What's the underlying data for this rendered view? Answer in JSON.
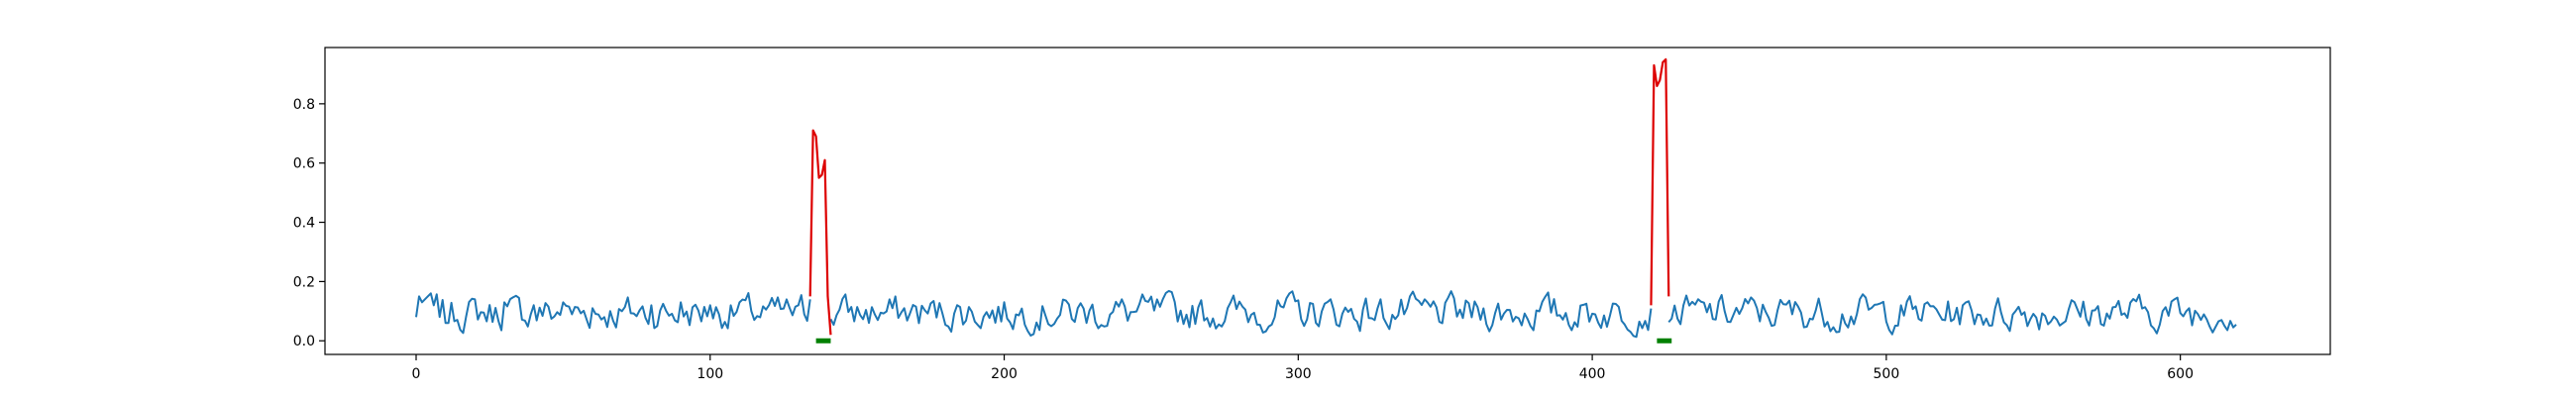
{
  "chart_data": {
    "type": "line",
    "title": "",
    "xlabel": "",
    "ylabel": "",
    "xlim": [
      -31,
      651
    ],
    "ylim": [
      -0.046,
      0.99
    ],
    "x_ticks": [
      0,
      100,
      200,
      300,
      400,
      500,
      600
    ],
    "x_tick_labels": [
      "0",
      "100",
      "200",
      "300",
      "400",
      "500",
      "600"
    ],
    "y_ticks": [
      0.0,
      0.2,
      0.4,
      0.6,
      0.8
    ],
    "y_tick_labels": [
      "0.0",
      "0.2",
      "0.4",
      "0.6",
      "0.8"
    ],
    "grid": false,
    "legend": "none",
    "n_points": 620,
    "baseline_y_range": [
      0.0,
      0.19
    ],
    "colors": {
      "series": "#1f77b4",
      "anomaly": "#dd0000",
      "marker": "#008000"
    },
    "series": [
      {
        "color": "#1f77b4",
        "x_range": [
          0,
          620
        ],
        "description_values_sample": [
          [
            0,
            0.08
          ],
          [
            1,
            0.15
          ],
          [
            2,
            0.13
          ],
          [
            3,
            0.14
          ],
          [
            4,
            0.15
          ],
          [
            5,
            0.16
          ],
          [
            6,
            0.12
          ],
          [
            10,
            0.06
          ],
          [
            20,
            0.14
          ],
          [
            30,
            0.13
          ],
          [
            40,
            0.12
          ],
          [
            50,
            0.13
          ],
          [
            60,
            0.11
          ],
          [
            70,
            0.1
          ],
          [
            80,
            0.12
          ],
          [
            90,
            0.13
          ],
          [
            100,
            0.12
          ],
          [
            110,
            0.13
          ],
          [
            120,
            0.12
          ],
          [
            130,
            0.12
          ],
          [
            134,
            0.14
          ]
        ]
      }
    ],
    "anomalies": [
      {
        "x": [
          134,
          135,
          136,
          137,
          138,
          139,
          140,
          141
        ],
        "y": [
          0.15,
          0.71,
          0.69,
          0.55,
          0.56,
          0.61,
          0.15,
          0.02
        ],
        "marker_x": [
          136,
          141
        ]
      },
      {
        "x": [
          420,
          421,
          422,
          423,
          424,
          425,
          426
        ],
        "y": [
          0.12,
          0.93,
          0.86,
          0.88,
          0.94,
          0.95,
          0.15
        ],
        "marker_x": [
          422,
          427
        ]
      }
    ]
  }
}
